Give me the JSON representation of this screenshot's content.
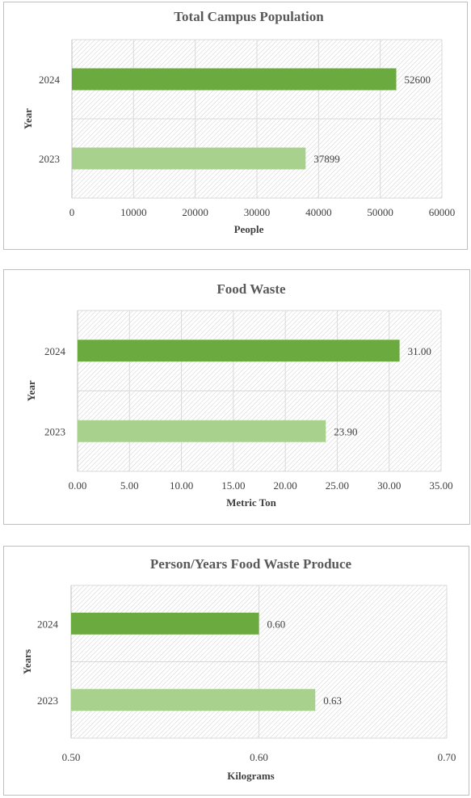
{
  "colors": {
    "bar_2024": "#6aaa3f",
    "bar_2023": "#a9d18e",
    "title": "#595959",
    "text": "#404040",
    "grid": "#d9d9d9",
    "hatch": "#cfcfcf"
  },
  "chart_data": [
    {
      "type": "bar",
      "orientation": "horizontal",
      "title": "Total Campus Population",
      "xlabel": "People",
      "ylabel": "Year",
      "categories": [
        "2024",
        "2023"
      ],
      "values": [
        52600,
        37899
      ],
      "value_labels": [
        "52600",
        "37899"
      ],
      "xlim": [
        0,
        60000
      ],
      "xticks": [
        "0",
        "10000",
        "20000",
        "30000",
        "40000",
        "50000",
        "60000"
      ],
      "grid": true,
      "legend": "none"
    },
    {
      "type": "bar",
      "orientation": "horizontal",
      "title": "Food Waste",
      "xlabel": "Metric Ton",
      "ylabel": "Year",
      "categories": [
        "2024",
        "2023"
      ],
      "values": [
        31.0,
        23.9
      ],
      "value_labels": [
        "31.00",
        "23.90"
      ],
      "xlim": [
        0,
        35
      ],
      "xticks": [
        "0.00",
        "5.00",
        "10.00",
        "15.00",
        "20.00",
        "25.00",
        "30.00",
        "35.00"
      ],
      "grid": true,
      "legend": "none"
    },
    {
      "type": "bar",
      "orientation": "horizontal",
      "title": "Person/Years Food Waste Produce",
      "xlabel": "Kilograms",
      "ylabel": "Years",
      "categories": [
        "2024",
        "2023"
      ],
      "values": [
        0.6,
        0.63
      ],
      "value_labels": [
        "0.60",
        "0.63"
      ],
      "xlim": [
        0.5,
        0.7
      ],
      "xticks": [
        "0.50",
        "0.60",
        "0.70"
      ],
      "grid": true,
      "legend": "none"
    }
  ]
}
